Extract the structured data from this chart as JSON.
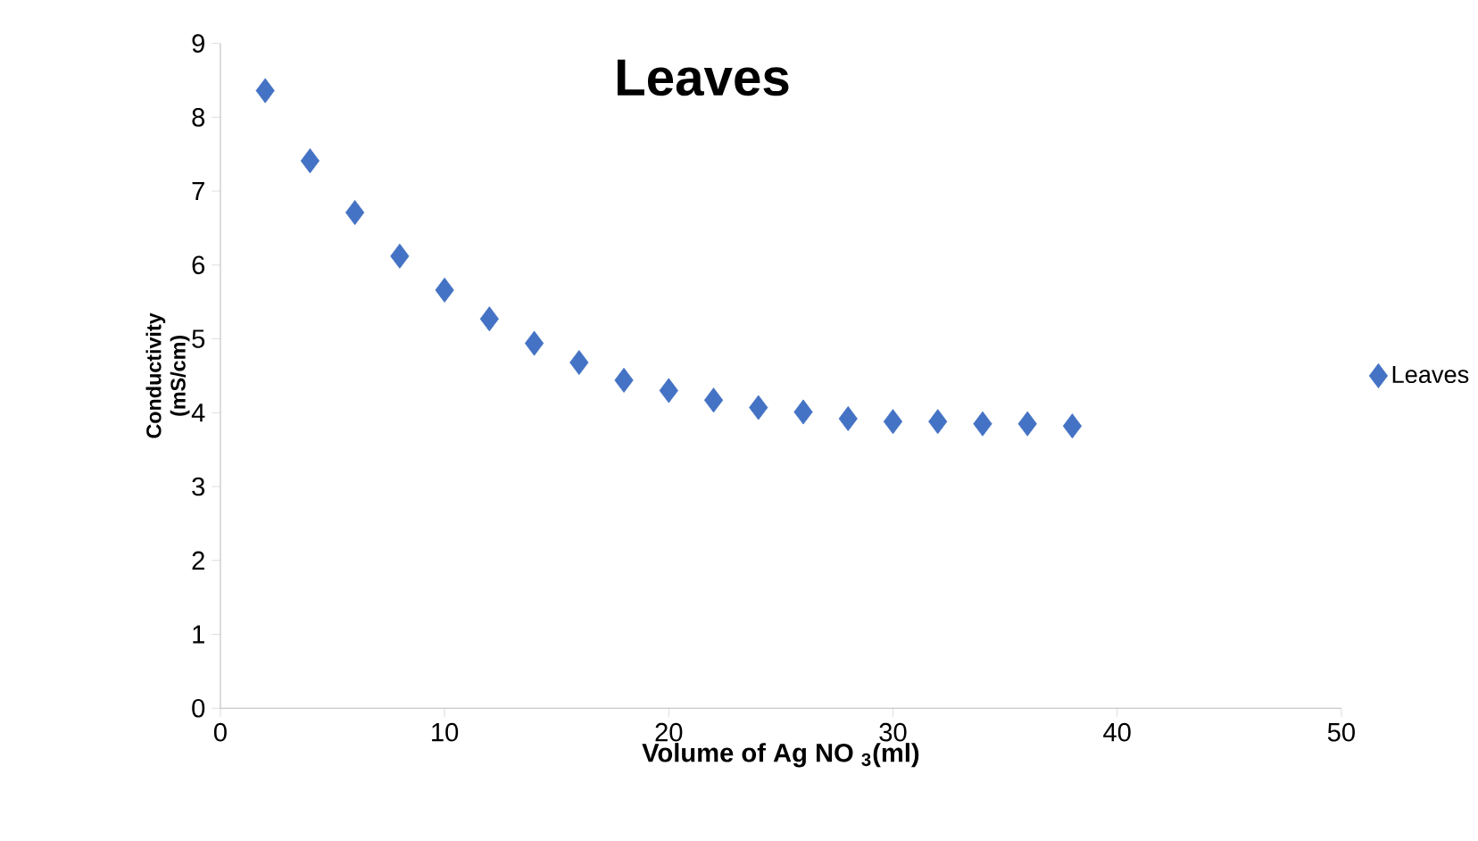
{
  "chart_data": {
    "type": "scatter",
    "title": "Leaves",
    "xlabel": "Volume of Ag NO $_{3}$(ml)",
    "ylabel": "Conductivity (mS/cm)",
    "x": [
      2,
      4,
      6,
      8,
      10,
      12,
      14,
      16,
      18,
      20,
      22,
      24,
      26,
      28,
      30,
      32,
      34,
      36,
      38
    ],
    "series": [
      {
        "name": "Leaves",
        "color": "#4472c4",
        "values": [
          8.36,
          7.41,
          6.71,
          6.12,
          5.66,
          5.27,
          4.94,
          4.68,
          4.44,
          4.3,
          4.17,
          4.07,
          4.01,
          3.92,
          3.88,
          3.88,
          3.85,
          3.85,
          3.82
        ]
      }
    ],
    "xlim": [
      0,
      50
    ],
    "xticks": [
      0,
      10,
      20,
      30,
      40,
      50
    ],
    "ylim": [
      0,
      9
    ],
    "yticks": [
      0,
      1,
      2,
      3,
      4,
      5,
      6,
      7,
      8,
      9
    ],
    "marker": "diamond",
    "legend": "right",
    "grid": false
  }
}
